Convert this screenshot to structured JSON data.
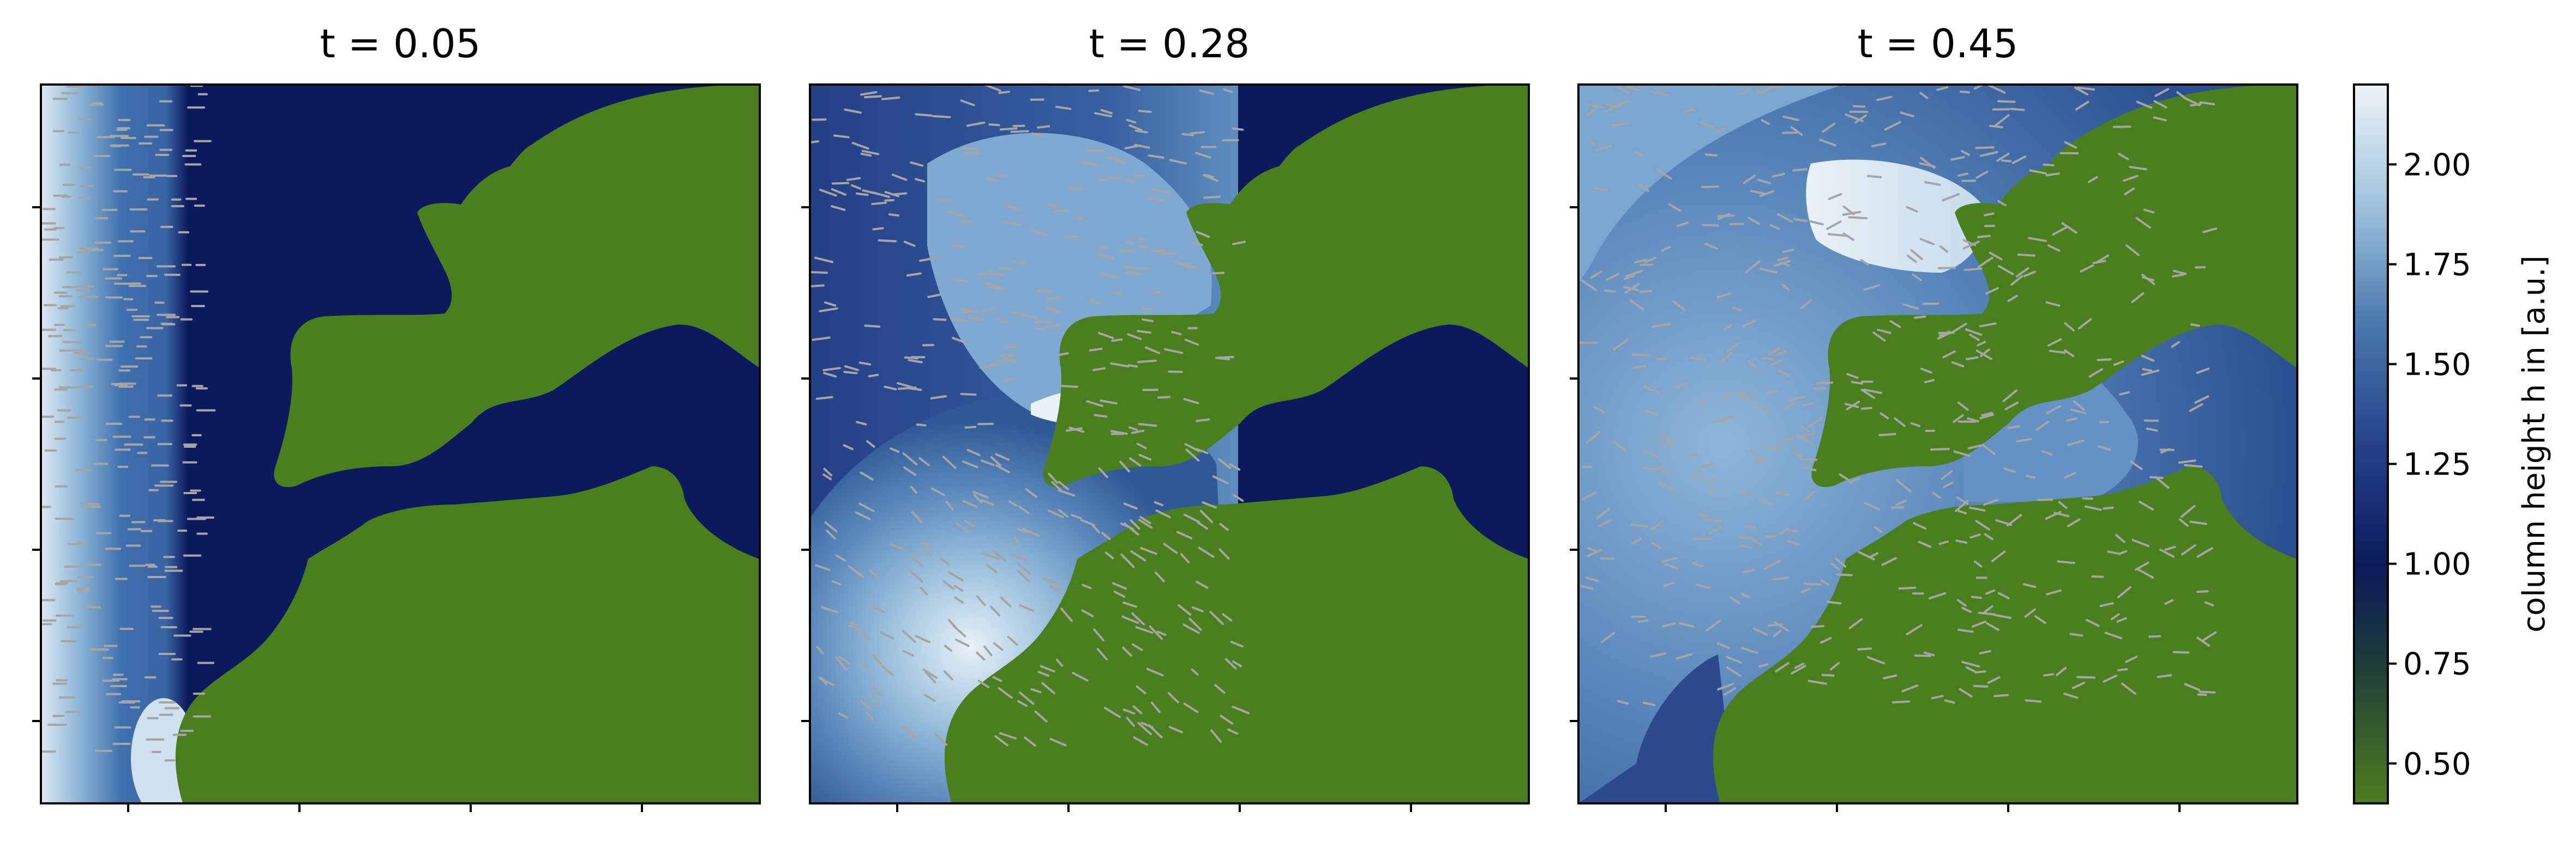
{
  "chart_data": {
    "type": "heatmap",
    "panels": [
      {
        "title": "t = 0.05",
        "t": 0.05
      },
      {
        "title": "t = 0.28",
        "t": 0.28
      },
      {
        "title": "t = 0.45",
        "t": 0.45
      }
    ],
    "colorbar": {
      "label": "column height h in [a.u.]",
      "range": [
        0.4,
        2.2
      ],
      "ticks": [
        "0.50",
        "0.75",
        "1.00",
        "1.25",
        "1.50",
        "1.75",
        "2.00"
      ],
      "tick_values": [
        0.5,
        0.75,
        1.0,
        1.25,
        1.5,
        1.75,
        2.0
      ],
      "colors": {
        "land": "#4a7f1e",
        "deep": "#0b1a5c",
        "mid": "#4a79ad",
        "light": "#e6f0f6"
      }
    },
    "x_ticks_shown_without_labels": 4,
    "y_ticks_shown_without_labels": 4,
    "quiver": {
      "color": "#a5a5a5"
    }
  }
}
